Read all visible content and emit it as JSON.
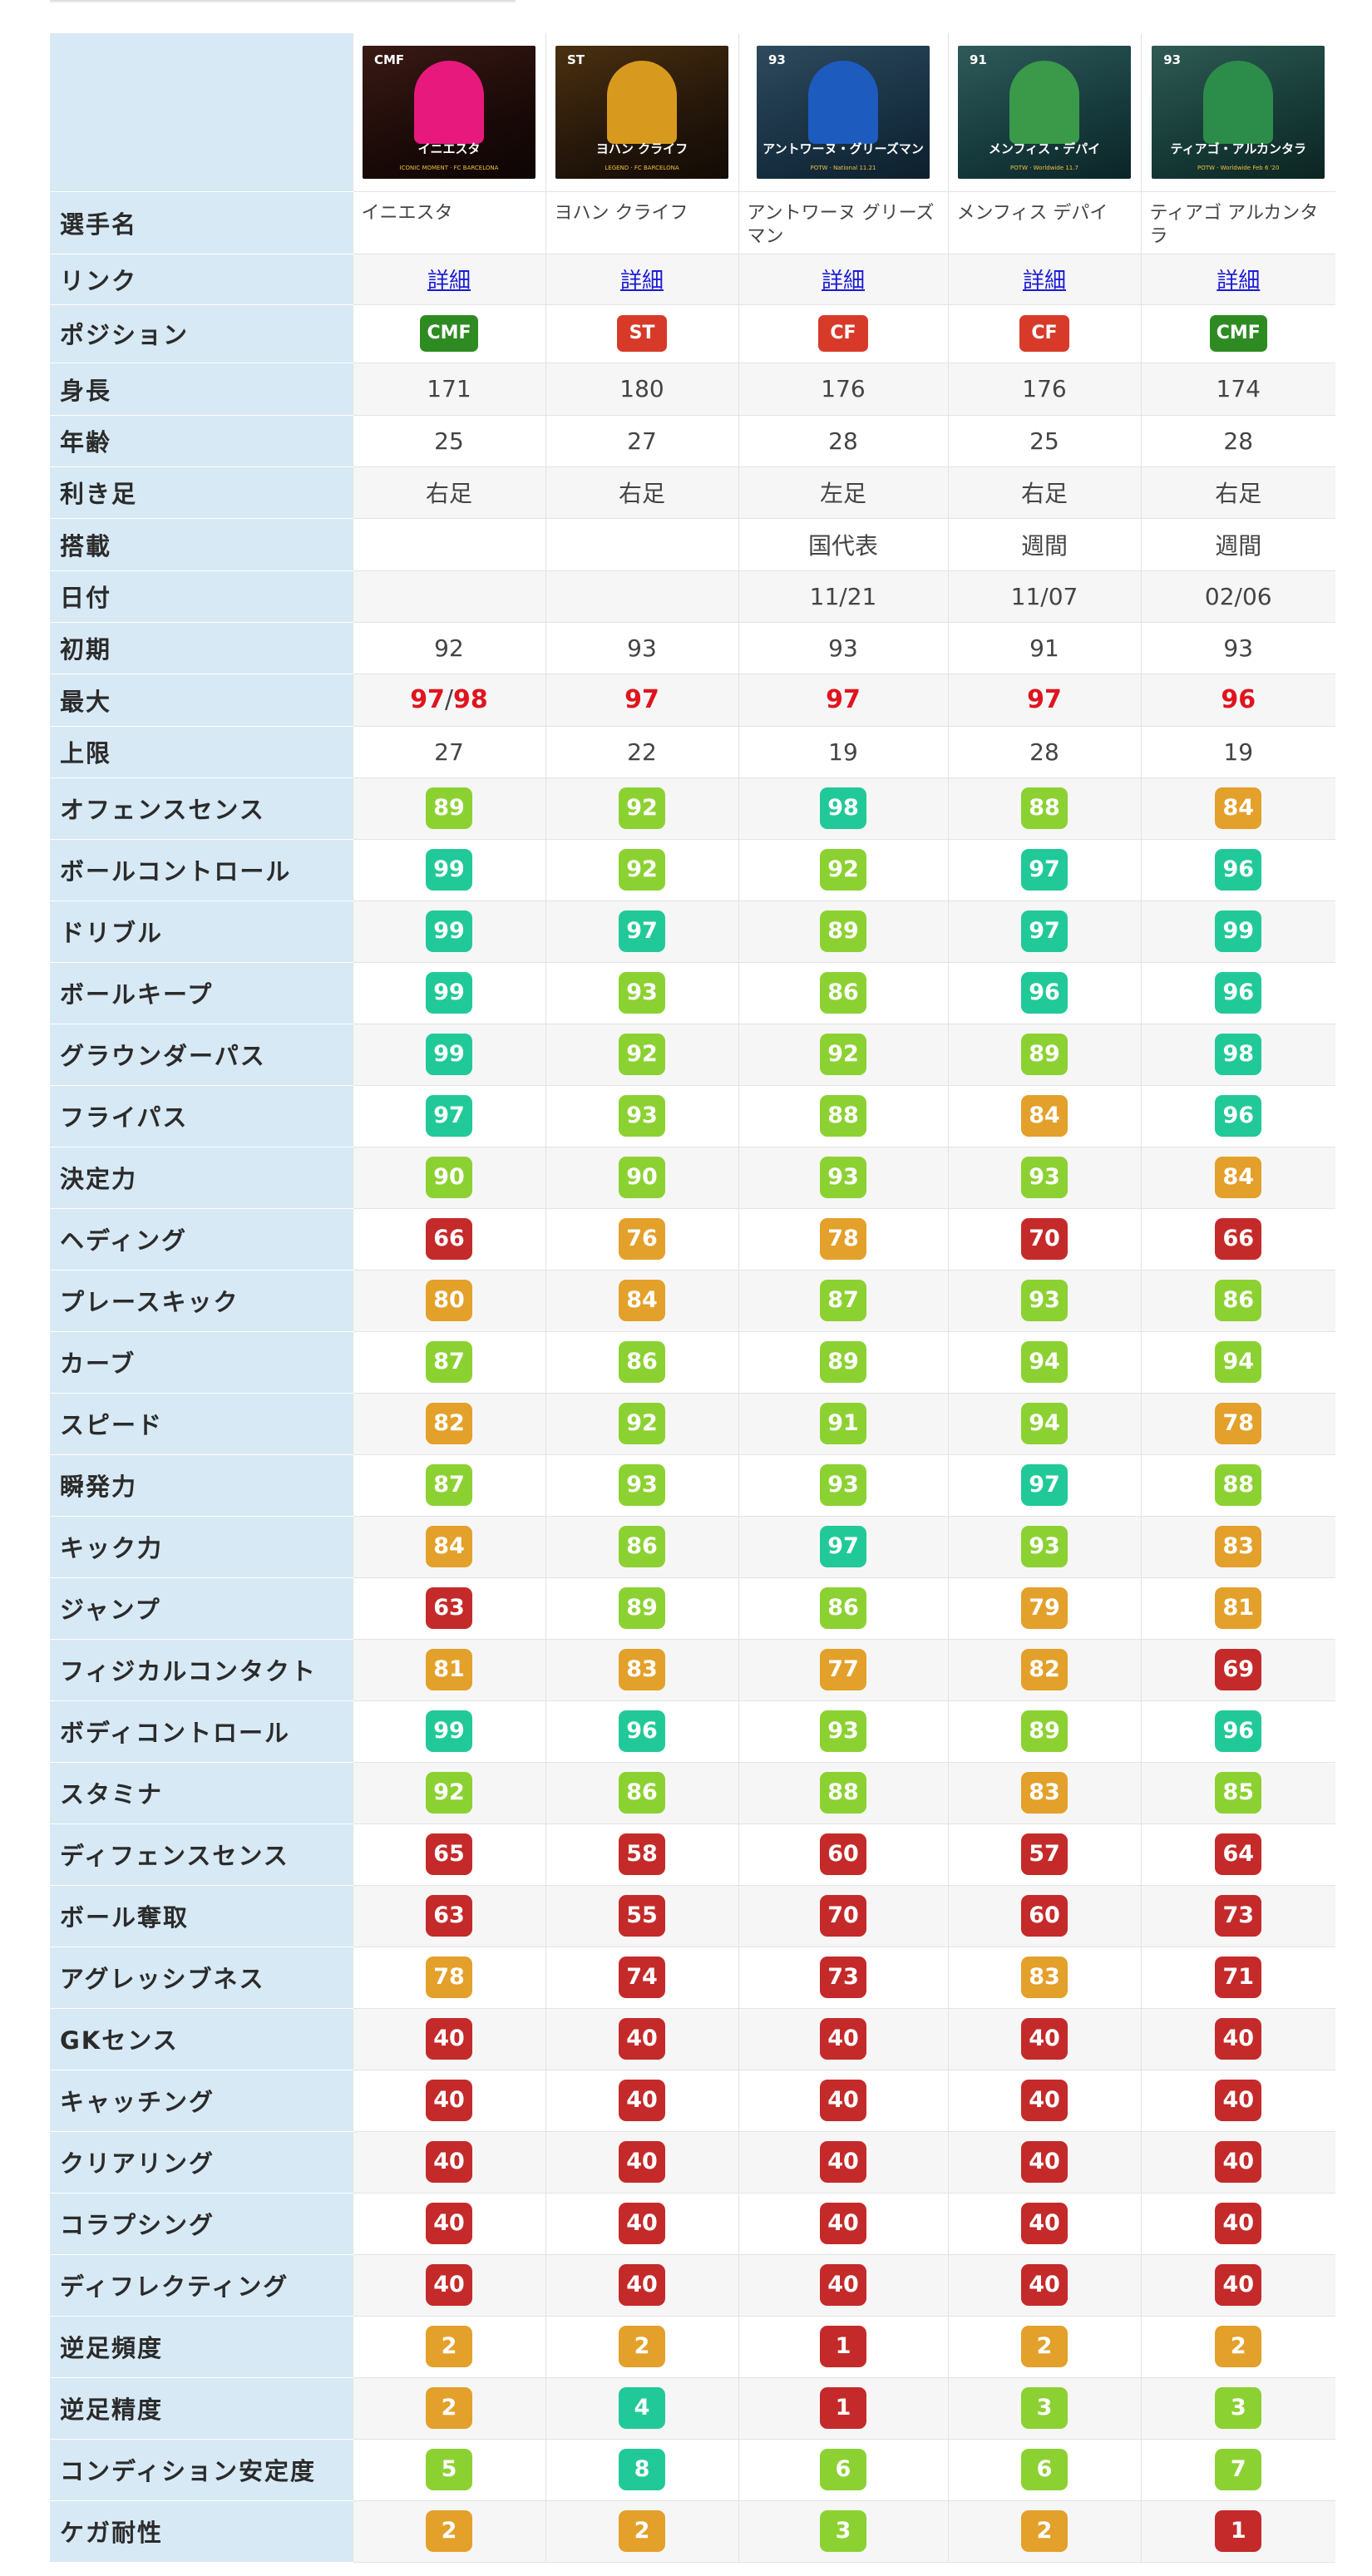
{
  "colors": {
    "green_dark": "#2e8b22",
    "red": "#d83a2a",
    "teal": "#21c998",
    "lime": "#8cd132",
    "orange": "#e3a02a",
    "dark_red": "#c42a2a",
    "header_bg": "#d7e9f5",
    "link": "#1a1ad6",
    "max_red": "#e0141e"
  },
  "players": [
    {
      "card_name": "イニエスタ",
      "card_sub": "ICONIC MOMENT · FC BARCELONA",
      "name": "イニエスタ",
      "link": "詳細",
      "position": "CMF",
      "height": "171",
      "age": "25",
      "foot": "右足",
      "feature": "",
      "date": "",
      "initial": "92",
      "max": "97",
      "max2": "98",
      "limit": "27",
      "card_overall": "CMF"
    },
    {
      "card_name": "ヨハン クライフ",
      "card_sub": "LEGEND · FC BARCELONA",
      "name": "ヨハン クライフ",
      "link": "詳細",
      "position": "ST",
      "height": "180",
      "age": "27",
      "foot": "右足",
      "feature": "",
      "date": "",
      "initial": "93",
      "max": "97",
      "max2": "",
      "limit": "22",
      "card_overall": "ST"
    },
    {
      "card_name": "アントワーヌ・グリーズマン",
      "card_sub": "POTW · National 11.21",
      "name": "アントワーヌ グリーズマン",
      "link": "詳細",
      "position": "CF",
      "height": "176",
      "age": "28",
      "foot": "左足",
      "feature": "国代表",
      "date": "11/21",
      "initial": "93",
      "max": "97",
      "max2": "",
      "limit": "19",
      "card_overall": "93"
    },
    {
      "card_name": "メンフィス・デパイ",
      "card_sub": "POTW · Worldwide 11.7",
      "name": "メンフィス デパイ",
      "link": "詳細",
      "position": "CF",
      "height": "176",
      "age": "25",
      "foot": "右足",
      "feature": "週間",
      "date": "11/07",
      "initial": "91",
      "max": "97",
      "max2": "",
      "limit": "28",
      "card_overall": "91"
    },
    {
      "card_name": "ティアゴ・アルカンタラ",
      "card_sub": "POTW · Worldwide Feb 6 '20",
      "name": "ティアゴ アルカンタラ",
      "link": "詳細",
      "position": "CMF",
      "height": "174",
      "age": "28",
      "foot": "右足",
      "feature": "週間",
      "date": "02/06",
      "initial": "93",
      "max": "96",
      "max2": "",
      "limit": "19",
      "card_overall": "93"
    }
  ],
  "row_labels": {
    "name": "選手名",
    "link": "リンク",
    "position": "ポジション",
    "height": "身長",
    "age": "年齢",
    "foot": "利き足",
    "feature": "搭載",
    "date": "日付",
    "initial": "初期",
    "max": "最大",
    "limit": "上限"
  },
  "max_separator": "/",
  "stats": [
    {
      "label": "オフェンスセンス",
      "values": [
        "89",
        "92",
        "98",
        "88",
        "84"
      ],
      "tiers": [
        "lime",
        "lime",
        "teal",
        "lime",
        "orange"
      ]
    },
    {
      "label": "ボールコントロール",
      "values": [
        "99",
        "92",
        "92",
        "97",
        "96"
      ],
      "tiers": [
        "teal",
        "lime",
        "lime",
        "teal",
        "teal"
      ]
    },
    {
      "label": "ドリブル",
      "values": [
        "99",
        "97",
        "89",
        "97",
        "99"
      ],
      "tiers": [
        "teal",
        "teal",
        "lime",
        "teal",
        "teal"
      ]
    },
    {
      "label": "ボールキープ",
      "values": [
        "99",
        "93",
        "86",
        "96",
        "96"
      ],
      "tiers": [
        "teal",
        "lime",
        "lime",
        "teal",
        "teal"
      ]
    },
    {
      "label": "グラウンダーパス",
      "values": [
        "99",
        "92",
        "92",
        "89",
        "98"
      ],
      "tiers": [
        "teal",
        "lime",
        "lime",
        "lime",
        "teal"
      ]
    },
    {
      "label": "フライパス",
      "values": [
        "97",
        "93",
        "88",
        "84",
        "96"
      ],
      "tiers": [
        "teal",
        "lime",
        "lime",
        "orange",
        "teal"
      ]
    },
    {
      "label": "決定力",
      "values": [
        "90",
        "90",
        "93",
        "93",
        "84"
      ],
      "tiers": [
        "lime",
        "lime",
        "lime",
        "lime",
        "orange"
      ]
    },
    {
      "label": "ヘディング",
      "values": [
        "66",
        "76",
        "78",
        "70",
        "66"
      ],
      "tiers": [
        "dark_red",
        "orange",
        "orange",
        "dark_red",
        "dark_red"
      ]
    },
    {
      "label": "プレースキック",
      "values": [
        "80",
        "84",
        "87",
        "93",
        "86"
      ],
      "tiers": [
        "orange",
        "orange",
        "lime",
        "lime",
        "lime"
      ]
    },
    {
      "label": "カーブ",
      "values": [
        "87",
        "86",
        "89",
        "94",
        "94"
      ],
      "tiers": [
        "lime",
        "lime",
        "lime",
        "lime",
        "lime"
      ]
    },
    {
      "label": "スピード",
      "values": [
        "82",
        "92",
        "91",
        "94",
        "78"
      ],
      "tiers": [
        "orange",
        "lime",
        "lime",
        "lime",
        "orange"
      ]
    },
    {
      "label": "瞬発力",
      "values": [
        "87",
        "93",
        "93",
        "97",
        "88"
      ],
      "tiers": [
        "lime",
        "lime",
        "lime",
        "teal",
        "lime"
      ]
    },
    {
      "label": "キック力",
      "values": [
        "84",
        "86",
        "97",
        "93",
        "83"
      ],
      "tiers": [
        "orange",
        "lime",
        "teal",
        "lime",
        "orange"
      ]
    },
    {
      "label": "ジャンプ",
      "values": [
        "63",
        "89",
        "86",
        "79",
        "81"
      ],
      "tiers": [
        "dark_red",
        "lime",
        "lime",
        "orange",
        "orange"
      ]
    },
    {
      "label": "フィジカルコンタクト",
      "values": [
        "81",
        "83",
        "77",
        "82",
        "69"
      ],
      "tiers": [
        "orange",
        "orange",
        "orange",
        "orange",
        "dark_red"
      ]
    },
    {
      "label": "ボディコントロール",
      "values": [
        "99",
        "96",
        "93",
        "89",
        "96"
      ],
      "tiers": [
        "teal",
        "teal",
        "lime",
        "lime",
        "teal"
      ]
    },
    {
      "label": "スタミナ",
      "values": [
        "92",
        "86",
        "88",
        "83",
        "85"
      ],
      "tiers": [
        "lime",
        "lime",
        "lime",
        "orange",
        "lime"
      ]
    },
    {
      "label": "ディフェンスセンス",
      "values": [
        "65",
        "58",
        "60",
        "57",
        "64"
      ],
      "tiers": [
        "dark_red",
        "dark_red",
        "dark_red",
        "dark_red",
        "dark_red"
      ]
    },
    {
      "label": "ボール奪取",
      "values": [
        "63",
        "55",
        "70",
        "60",
        "73"
      ],
      "tiers": [
        "dark_red",
        "dark_red",
        "dark_red",
        "dark_red",
        "dark_red"
      ]
    },
    {
      "label": "アグレッシブネス",
      "values": [
        "78",
        "74",
        "73",
        "83",
        "71"
      ],
      "tiers": [
        "orange",
        "dark_red",
        "dark_red",
        "orange",
        "dark_red"
      ]
    },
    {
      "label": "GKセンス",
      "values": [
        "40",
        "40",
        "40",
        "40",
        "40"
      ],
      "tiers": [
        "dark_red",
        "dark_red",
        "dark_red",
        "dark_red",
        "dark_red"
      ]
    },
    {
      "label": "キャッチング",
      "values": [
        "40",
        "40",
        "40",
        "40",
        "40"
      ],
      "tiers": [
        "dark_red",
        "dark_red",
        "dark_red",
        "dark_red",
        "dark_red"
      ]
    },
    {
      "label": "クリアリング",
      "values": [
        "40",
        "40",
        "40",
        "40",
        "40"
      ],
      "tiers": [
        "dark_red",
        "dark_red",
        "dark_red",
        "dark_red",
        "dark_red"
      ]
    },
    {
      "label": "コラプシング",
      "values": [
        "40",
        "40",
        "40",
        "40",
        "40"
      ],
      "tiers": [
        "dark_red",
        "dark_red",
        "dark_red",
        "dark_red",
        "dark_red"
      ]
    },
    {
      "label": "ディフレクティング",
      "values": [
        "40",
        "40",
        "40",
        "40",
        "40"
      ],
      "tiers": [
        "dark_red",
        "dark_red",
        "dark_red",
        "dark_red",
        "dark_red"
      ]
    },
    {
      "label": "逆足頻度",
      "values": [
        "2",
        "2",
        "1",
        "2",
        "2"
      ],
      "tiers": [
        "orange",
        "orange",
        "dark_red",
        "orange",
        "orange"
      ]
    },
    {
      "label": "逆足精度",
      "values": [
        "2",
        "4",
        "1",
        "3",
        "3"
      ],
      "tiers": [
        "orange",
        "teal",
        "dark_red",
        "lime",
        "lime"
      ]
    },
    {
      "label": "コンディション安定度",
      "values": [
        "5",
        "8",
        "6",
        "6",
        "7"
      ],
      "tiers": [
        "lime",
        "teal",
        "lime",
        "lime",
        "lime"
      ]
    },
    {
      "label": "ケガ耐性",
      "values": [
        "2",
        "2",
        "3",
        "2",
        "1"
      ],
      "tiers": [
        "orange",
        "orange",
        "lime",
        "orange",
        "dark_red"
      ]
    }
  ]
}
